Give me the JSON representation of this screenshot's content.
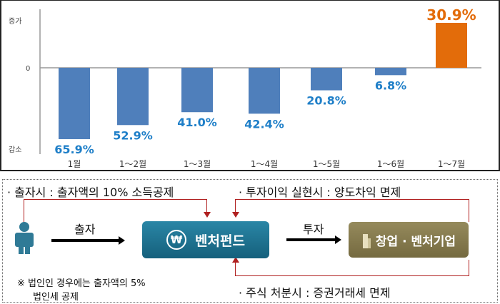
{
  "chart_data": {
    "type": "bar",
    "categories": [
      "1월",
      "1～2월",
      "1～3월",
      "1～4월",
      "1～5월",
      "1～6월",
      "1～7월"
    ],
    "values": [
      -65.9,
      -52.9,
      -41.0,
      -42.4,
      -20.8,
      -6.8,
      30.9
    ],
    "data_labels": [
      "65.9%",
      "52.9%",
      "41.0%",
      "42.4%",
      "20.8%",
      "6.8%",
      "30.9%"
    ],
    "y_tick_labels": {
      "top": "증가",
      "zero": "0",
      "bottom": "감소"
    },
    "ylim": [
      -70,
      45
    ],
    "grid": false,
    "colors": {
      "negative": "#4f7fbb",
      "positive": "#e36c0a",
      "negative_label": "#1f7fc8",
      "positive_label": "#e36c0a"
    }
  },
  "diagram": {
    "top_left_note": "· 출자시 : 출자액의 10% 소득공제",
    "top_right_note": "· 투자이익 실현시 : 양도차익 면제",
    "bottom_right_note": "· 주식 처분시 : 증권거래세 면제",
    "footnote_line1": "※ 법인인 경우에는 출자액의 5%",
    "footnote_line2": "법인세 공제",
    "arrow1_label": "출자",
    "arrow2_label": "투자",
    "fund_box": "벤처펀드",
    "venture_box": "창업 · 벤처기업",
    "won_symbol": "₩",
    "colors": {
      "fund": "#1a6f8c",
      "venture": "#857a4e",
      "person": "#2f7a96",
      "flow_line": "#b02020"
    }
  }
}
